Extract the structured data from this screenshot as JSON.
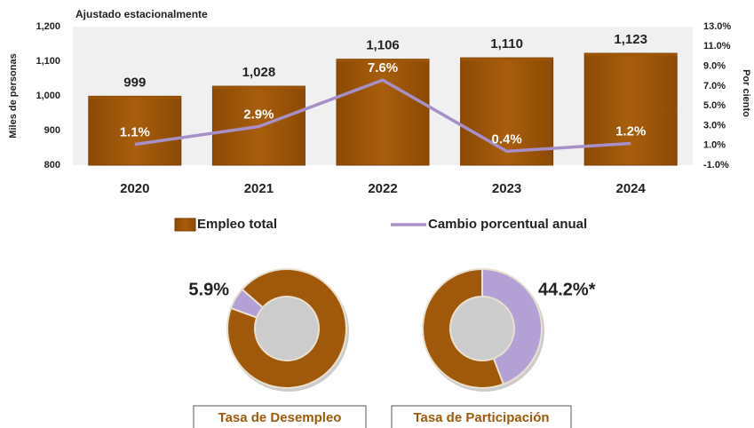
{
  "chart_data": [
    {
      "type": "bar",
      "subtitle": "Ajustado estacionalmente",
      "ylabel": "Miles de personas",
      "y2label": "Por ciento",
      "categories": [
        "2020",
        "2021",
        "2022",
        "2023",
        "2024"
      ],
      "series": [
        {
          "name": "Empleo total",
          "color": "#a0580a",
          "values": [
            999,
            1028,
            1106,
            1110,
            1123
          ],
          "value_labels": [
            "999",
            "1,028",
            "1,106",
            "1,110",
            "1,123"
          ]
        },
        {
          "name": "Cambio porcentual anual",
          "color": "#a78fc7",
          "axis": "y2",
          "values": [
            1.1,
            2.9,
            7.6,
            0.4,
            1.2
          ],
          "value_labels": [
            "1.1%",
            "2.9%",
            "7.6%",
            "0.4%",
            "1.2%"
          ]
        }
      ],
      "ylim": [
        800,
        1200
      ],
      "yticks": [
        800,
        900,
        {
          "value": 1000,
          "label": "1,000"
        },
        {
          "value": 1100,
          "label": "1,100"
        },
        {
          "value": 1200,
          "label": "1,200"
        }
      ],
      "y2lim": [
        -1,
        13
      ],
      "y2ticks": [
        {
          "value": -1,
          "label": "-1.0%"
        },
        {
          "value": 1,
          "label": "1.0%"
        },
        {
          "value": 3,
          "label": "3.0%"
        },
        {
          "value": 5,
          "label": "5.0%"
        },
        {
          "value": 7,
          "label": "7.0%"
        },
        {
          "value": 9,
          "label": "9.0%"
        },
        {
          "value": 11,
          "label": "11.0%"
        },
        {
          "value": 13,
          "label": "13.0%"
        }
      ],
      "grid": false
    },
    {
      "type": "donut",
      "title": "Tasa de Desempleo",
      "values": [
        5.9,
        94.1
      ],
      "colors": [
        "#b3a0d4",
        "#a0580a"
      ],
      "value_labels": [
        "5.9%",
        null
      ]
    },
    {
      "type": "donut",
      "title": "Tasa de Participación",
      "values": [
        44.2,
        55.8
      ],
      "colors": [
        "#b3a0d4",
        "#a0580a"
      ],
      "value_labels": [
        "44.2%*",
        null
      ]
    }
  ]
}
